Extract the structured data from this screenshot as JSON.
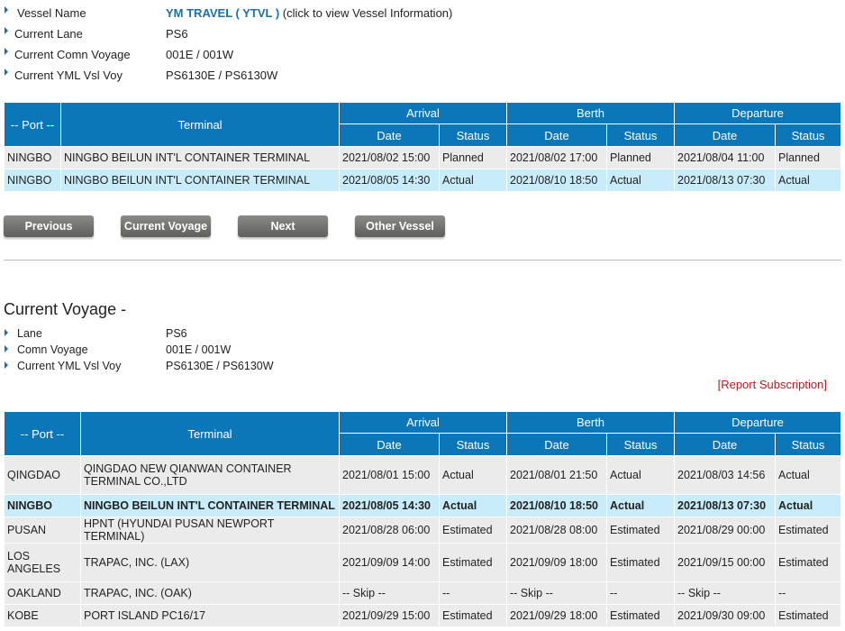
{
  "vessel_info": {
    "vessel_name_label": "Vessel Name",
    "vessel_name": "YM TRAVEL ( YTVL )",
    "vessel_hint": "(click to view Vessel Information)",
    "lane_label": "Current Lane",
    "lane": "PS6",
    "voyage_label": "Current Comn Voyage",
    "voyage": "001E / 001W",
    "ymlvoy_label": "Current YML Vsl Voy",
    "ymlvoy": "PS6130E / PS6130W"
  },
  "table_headers": {
    "port": "-- Port --",
    "terminal": "Terminal",
    "arrival": "Arrival",
    "berth": "Berth",
    "departure": "Departure",
    "date": "Date",
    "status": "Status"
  },
  "schedule_rows": [
    {
      "port": "NINGBO",
      "terminal": "NINGBO BEILUN INT'L CONTAINER TERMINAL",
      "arr_date": "2021/08/02 15:00",
      "arr_status": "Planned",
      "berth_date": "2021/08/02 17:00",
      "berth_status": "Planned",
      "dep_date": "2021/08/04 11:00",
      "dep_status": "Planned",
      "style": "g"
    },
    {
      "port": "NINGBO",
      "terminal": "NINGBO BEILUN INT'L CONTAINER TERMINAL",
      "arr_date": "2021/08/05 14:30",
      "arr_status": "Actual",
      "berth_date": "2021/08/10 18:50",
      "berth_status": "Actual",
      "dep_date": "2021/08/13 07:30",
      "dep_status": "Actual",
      "style": "b"
    }
  ],
  "buttons": {
    "previous": "Previous",
    "current_voyage": "Current Voyage",
    "next": "Next",
    "other_vessel": "Other Vessel"
  },
  "current_voyage": {
    "title": "Current Voyage -",
    "lane_label": "Lane",
    "lane": "PS6",
    "voyage_label": "Comn Voyage",
    "voyage": "001E / 001W",
    "ymlvoy_label": "Current YML Vsl Voy",
    "ymlvoy": "PS6130E / PS6130W",
    "report_link": "[Report Subscription]"
  },
  "voyage_rows": [
    {
      "port": "QINGDAO",
      "terminal": "QINGDAO NEW QIANWAN CONTAINER TERMINAL CO.,LTD",
      "arr_date": "2021/08/01 15:00",
      "arr_status": "Actual",
      "berth_date": "2021/08/01 21:50",
      "berth_status": "Actual",
      "dep_date": "2021/08/03 14:56",
      "dep_status": "Actual",
      "style": "g",
      "h": 43
    },
    {
      "port": "NINGBO",
      "terminal": "NINGBO BEILUN INT'L CONTAINER TERMINAL",
      "arr_date": "2021/08/05 14:30",
      "arr_status": "Actual",
      "berth_date": "2021/08/10 18:50",
      "berth_status": "Actual",
      "dep_date": "2021/08/13 07:30",
      "dep_status": "Actual",
      "style": "b bold",
      "h": 25
    },
    {
      "port": "PUSAN",
      "terminal": "HPNT (HYUNDAI PUSAN NEWPORT TERMINAL)",
      "arr_date": "2021/08/28 06:00",
      "arr_status": "Estimated",
      "berth_date": "2021/08/28 08:00",
      "berth_status": "Estimated",
      "dep_date": "2021/08/29 00:00",
      "dep_status": "Estimated",
      "style": "g",
      "h": 25
    },
    {
      "port": "LOS ANGELES",
      "terminal": "TRAPAC, INC. (LAX)",
      "arr_date": "2021/09/09 14:00",
      "arr_status": "Estimated",
      "berth_date": "2021/09/09 18:00",
      "berth_status": "Estimated",
      "dep_date": "2021/09/15 00:00",
      "dep_status": "Estimated",
      "style": "g",
      "h": 43
    },
    {
      "port": "OAKLAND",
      "terminal": "TRAPAC, INC. (OAK)",
      "arr_date": "-- Skip --",
      "arr_status": "--",
      "berth_date": "-- Skip --",
      "berth_status": "--",
      "dep_date": "-- Skip --",
      "dep_status": "--",
      "style": "g",
      "h": 25
    },
    {
      "port": "KOBE",
      "terminal": "PORT ISLAND PC16/17",
      "arr_date": "2021/09/29 15:00",
      "arr_status": "Estimated",
      "berth_date": "2021/09/29 18:00",
      "berth_status": "Estimated",
      "dep_date": "2021/09/30 09:00",
      "dep_status": "Estimated",
      "style": "g",
      "h": 25
    }
  ]
}
